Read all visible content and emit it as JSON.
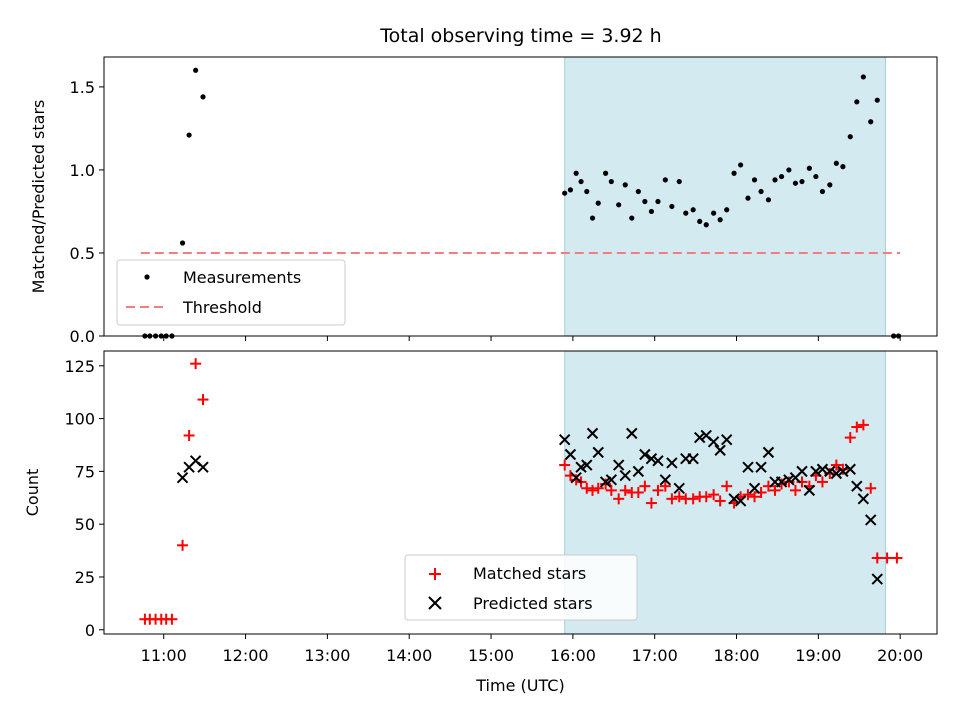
{
  "figure": {
    "title": "Total observing time = 3.92 h",
    "xlabel": "Time (UTC)",
    "x_ticks": [
      "11:00",
      "12:00",
      "13:00",
      "14:00",
      "15:00",
      "16:00",
      "17:00",
      "18:00",
      "19:00",
      "20:00"
    ],
    "x_tick_hours": [
      11,
      12,
      13,
      14,
      15,
      16,
      17,
      18,
      19,
      20
    ],
    "xlim_hours": [
      10.27,
      20.45
    ],
    "shaded_interval_hours": [
      15.9,
      19.82
    ],
    "shade_color": "#d3eaf1"
  },
  "chart_data": [
    {
      "type": "scatter",
      "ylabel": "Matched/Predicted stars",
      "ylim": [
        0,
        1.68
      ],
      "y_ticks": [
        "0.0",
        "0.5",
        "1.0",
        "1.5"
      ],
      "y_tick_values": [
        0,
        0.5,
        1.0,
        1.5
      ],
      "legend_position": "lower-left",
      "threshold": {
        "name": "Threshold",
        "value": 0.5,
        "x_range_hours": [
          10.72,
          20.0
        ],
        "color": "#f08080"
      },
      "series": [
        {
          "name": "Measurements",
          "color": "#000000",
          "marker": "dot",
          "points": [
            [
              10.77,
              0
            ],
            [
              10.83,
              0
            ],
            [
              10.9,
              0
            ],
            [
              10.97,
              0
            ],
            [
              11.03,
              0
            ],
            [
              11.1,
              0
            ],
            [
              11.23,
              0.56
            ],
            [
              11.31,
              1.21
            ],
            [
              11.39,
              1.6
            ],
            [
              11.48,
              1.44
            ],
            [
              15.9,
              0.86
            ],
            [
              15.97,
              0.88
            ],
            [
              16.04,
              0.98
            ],
            [
              16.1,
              0.93
            ],
            [
              16.17,
              0.87
            ],
            [
              16.24,
              0.71
            ],
            [
              16.31,
              0.8
            ],
            [
              16.4,
              0.98
            ],
            [
              16.47,
              0.93
            ],
            [
              16.56,
              0.79
            ],
            [
              16.64,
              0.91
            ],
            [
              16.72,
              0.71
            ],
            [
              16.8,
              0.87
            ],
            [
              16.88,
              0.81
            ],
            [
              16.96,
              0.75
            ],
            [
              17.04,
              0.81
            ],
            [
              17.13,
              0.94
            ],
            [
              17.21,
              0.78
            ],
            [
              17.3,
              0.93
            ],
            [
              17.38,
              0.74
            ],
            [
              17.47,
              0.76
            ],
            [
              17.55,
              0.69
            ],
            [
              17.63,
              0.67
            ],
            [
              17.72,
              0.74
            ],
            [
              17.8,
              0.7
            ],
            [
              17.88,
              0.76
            ],
            [
              17.97,
              0.98
            ],
            [
              18.05,
              1.03
            ],
            [
              18.14,
              0.83
            ],
            [
              18.22,
              0.94
            ],
            [
              18.3,
              0.87
            ],
            [
              18.39,
              0.82
            ],
            [
              18.47,
              0.94
            ],
            [
              18.55,
              0.96
            ],
            [
              18.64,
              1.0
            ],
            [
              18.72,
              0.92
            ],
            [
              18.8,
              0.93
            ],
            [
              18.89,
              1.01
            ],
            [
              18.97,
              0.96
            ],
            [
              19.05,
              0.87
            ],
            [
              19.14,
              0.91
            ],
            [
              19.22,
              1.04
            ],
            [
              19.3,
              1.02
            ],
            [
              19.39,
              1.2
            ],
            [
              19.47,
              1.41
            ],
            [
              19.55,
              1.56
            ],
            [
              19.64,
              1.29
            ],
            [
              19.72,
              1.42
            ],
            [
              19.92,
              0
            ],
            [
              19.98,
              0
            ]
          ]
        }
      ]
    },
    {
      "type": "scatter",
      "ylabel": "Count",
      "ylim": [
        -2,
        132
      ],
      "y_ticks": [
        "0",
        "25",
        "50",
        "75",
        "100",
        "125"
      ],
      "y_tick_values": [
        0,
        25,
        50,
        75,
        100,
        125
      ],
      "legend_position": "lower-center",
      "series": [
        {
          "name": "Matched stars",
          "color": "#ff0000",
          "marker": "plus",
          "points": [
            [
              10.77,
              5
            ],
            [
              10.83,
              5
            ],
            [
              10.9,
              5
            ],
            [
              10.97,
              5
            ],
            [
              11.03,
              5
            ],
            [
              11.1,
              5
            ],
            [
              11.23,
              40
            ],
            [
              11.31,
              92
            ],
            [
              11.39,
              126
            ],
            [
              11.48,
              109
            ],
            [
              15.9,
              78
            ],
            [
              15.97,
              73
            ],
            [
              16.04,
              71
            ],
            [
              16.1,
              70
            ],
            [
              16.17,
              67
            ],
            [
              16.24,
              66
            ],
            [
              16.31,
              67
            ],
            [
              16.4,
              69
            ],
            [
              16.47,
              66
            ],
            [
              16.56,
              62
            ],
            [
              16.64,
              66
            ],
            [
              16.72,
              65
            ],
            [
              16.8,
              65
            ],
            [
              16.88,
              68
            ],
            [
              16.96,
              60
            ],
            [
              17.04,
              66
            ],
            [
              17.13,
              68
            ],
            [
              17.21,
              62
            ],
            [
              17.3,
              63
            ],
            [
              17.38,
              62
            ],
            [
              17.47,
              62
            ],
            [
              17.55,
              63
            ],
            [
              17.63,
              63
            ],
            [
              17.72,
              64
            ],
            [
              17.8,
              61
            ],
            [
              17.88,
              68
            ],
            [
              17.97,
              60
            ],
            [
              18.05,
              63
            ],
            [
              18.14,
              64
            ],
            [
              18.22,
              63
            ],
            [
              18.3,
              65
            ],
            [
              18.39,
              68
            ],
            [
              18.47,
              66
            ],
            [
              18.55,
              69
            ],
            [
              18.64,
              70
            ],
            [
              18.72,
              66
            ],
            [
              18.8,
              70
            ],
            [
              18.89,
              68
            ],
            [
              18.97,
              73
            ],
            [
              19.05,
              70
            ],
            [
              19.14,
              74
            ],
            [
              19.22,
              78
            ],
            [
              19.3,
              76
            ],
            [
              19.39,
              91
            ],
            [
              19.47,
              96
            ],
            [
              19.55,
              97
            ],
            [
              19.64,
              67
            ],
            [
              19.72,
              34
            ],
            [
              19.84,
              34
            ],
            [
              19.96,
              34
            ]
          ]
        },
        {
          "name": "Predicted stars",
          "color": "#000000",
          "marker": "cross",
          "points": [
            [
              11.23,
              72
            ],
            [
              11.31,
              77
            ],
            [
              11.39,
              80
            ],
            [
              11.48,
              77
            ],
            [
              15.9,
              90
            ],
            [
              15.97,
              83
            ],
            [
              16.04,
              72
            ],
            [
              16.1,
              77
            ],
            [
              16.17,
              78
            ],
            [
              16.24,
              93
            ],
            [
              16.31,
              84
            ],
            [
              16.4,
              70
            ],
            [
              16.47,
              71
            ],
            [
              16.56,
              78
            ],
            [
              16.64,
              73
            ],
            [
              16.72,
              93
            ],
            [
              16.8,
              75
            ],
            [
              16.88,
              83
            ],
            [
              16.96,
              81
            ],
            [
              17.04,
              80
            ],
            [
              17.13,
              71
            ],
            [
              17.21,
              79
            ],
            [
              17.3,
              67
            ],
            [
              17.38,
              81
            ],
            [
              17.47,
              81
            ],
            [
              17.55,
              91
            ],
            [
              17.63,
              92
            ],
            [
              17.72,
              89
            ],
            [
              17.8,
              85
            ],
            [
              17.88,
              90
            ],
            [
              17.97,
              62
            ],
            [
              18.05,
              61
            ],
            [
              18.14,
              77
            ],
            [
              18.22,
              67
            ],
            [
              18.3,
              77
            ],
            [
              18.39,
              84
            ],
            [
              18.47,
              70
            ],
            [
              18.55,
              70
            ],
            [
              18.64,
              71
            ],
            [
              18.72,
              72
            ],
            [
              18.8,
              75
            ],
            [
              18.89,
              66
            ],
            [
              18.97,
              75
            ],
            [
              19.05,
              76
            ],
            [
              19.14,
              75
            ],
            [
              19.22,
              74
            ],
            [
              19.3,
              75
            ],
            [
              19.39,
              76
            ],
            [
              19.47,
              68
            ],
            [
              19.55,
              62
            ],
            [
              19.64,
              52
            ],
            [
              19.72,
              24
            ]
          ]
        }
      ]
    }
  ]
}
